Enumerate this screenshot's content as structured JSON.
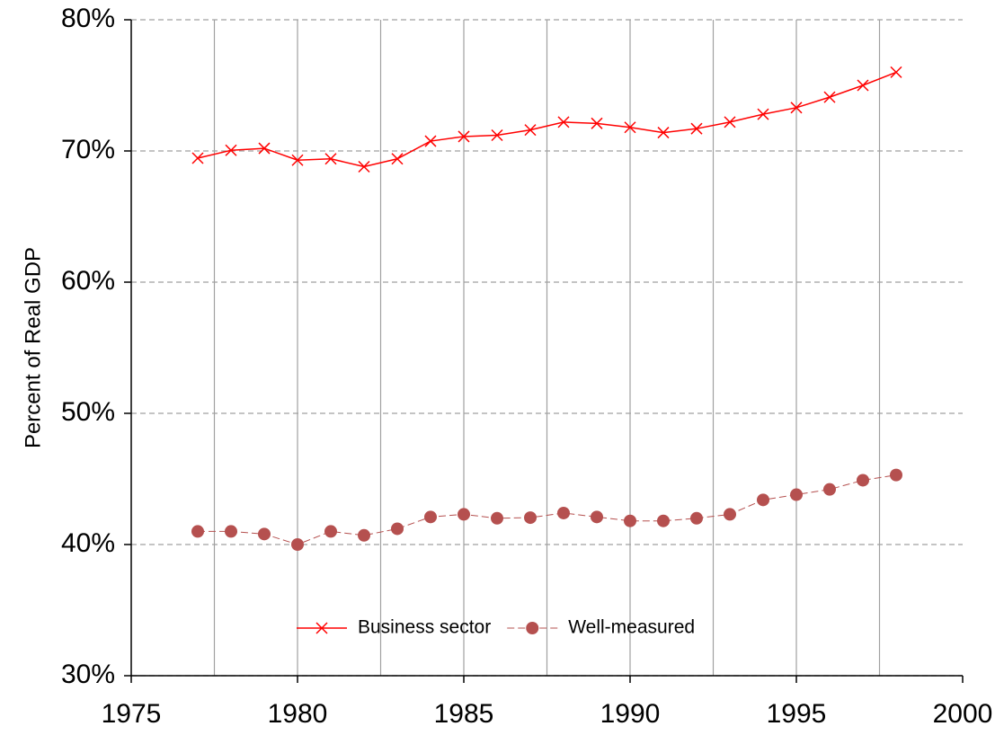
{
  "chart_data": {
    "type": "line",
    "y_label": "Percent of Real GDP",
    "x": [
      1977,
      1978,
      1979,
      1980,
      1981,
      1982,
      1983,
      1984,
      1985,
      1986,
      1987,
      1988,
      1989,
      1990,
      1991,
      1992,
      1993,
      1994,
      1995,
      1996,
      1997,
      1998
    ],
    "series": [
      {
        "name": "Business sector",
        "color": "#ff0000",
        "marker": "x",
        "dashed": false,
        "values": [
          69.45,
          70.05,
          70.2,
          69.3,
          69.4,
          68.8,
          69.4,
          70.75,
          71.1,
          71.2,
          71.6,
          72.2,
          72.1,
          71.8,
          71.4,
          71.7,
          72.2,
          72.8,
          73.3,
          74.1,
          75.0,
          76.0
        ]
      },
      {
        "name": "Well-measured",
        "color": "#b5504f",
        "marker": "circle",
        "dashed": true,
        "values": [
          41.0,
          41.0,
          40.8,
          40.0,
          41.0,
          40.7,
          41.2,
          42.1,
          42.3,
          42.0,
          42.05,
          42.4,
          42.1,
          41.8,
          41.8,
          42.0,
          42.3,
          43.4,
          43.8,
          44.2,
          44.9,
          45.3
        ]
      }
    ],
    "xlim": [
      1975,
      2000
    ],
    "xticks": [
      1975,
      1980,
      1985,
      1990,
      1995,
      2000
    ],
    "xgrid": [
      1977.5,
      1980,
      1982.5,
      1985,
      1987.5,
      1990,
      1992.5,
      1995,
      1997.5
    ],
    "ylim": [
      30,
      80
    ],
    "yticks": [
      {
        "value": 30,
        "label": "30%"
      },
      {
        "value": 40,
        "label": "40%"
      },
      {
        "value": 50,
        "label": "50%"
      },
      {
        "value": 60,
        "label": "60%"
      },
      {
        "value": 70,
        "label": "70%"
      },
      {
        "value": 80,
        "label": "80%"
      }
    ],
    "grid": true,
    "legend": "bottom"
  }
}
